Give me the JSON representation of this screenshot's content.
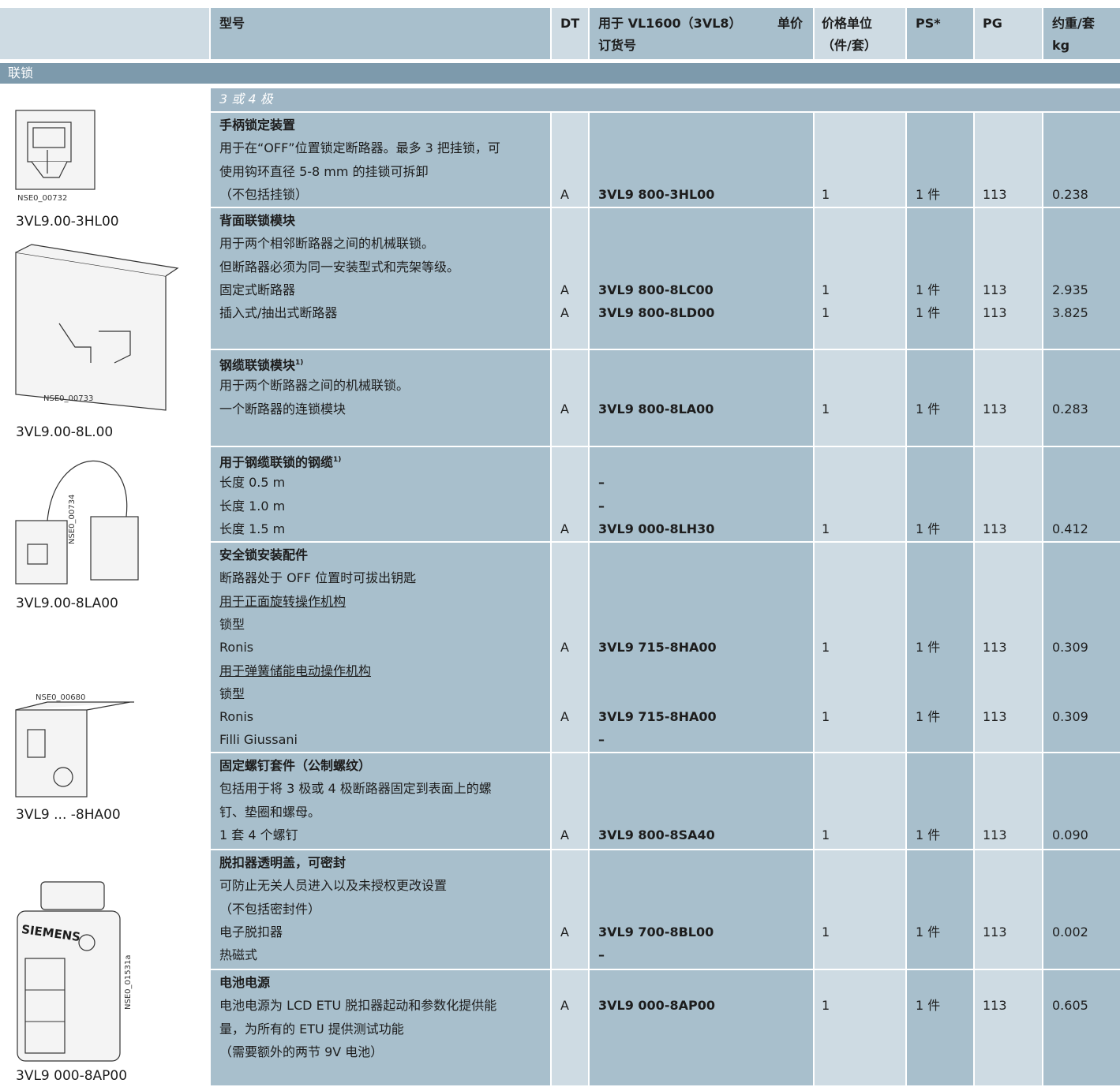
{
  "header": {
    "model": "型号",
    "dt": "DT",
    "order_line1": "用于 VL1600（3VL8）",
    "order_line2": "订货号",
    "price": "单价",
    "unit_line1": "价格单位",
    "unit_line2": "（件/套）",
    "ps": "PS*",
    "pg": "PG",
    "weight_line1": "约重/套",
    "weight_line2": "kg"
  },
  "section": "联锁",
  "subsection": "3 或 4 极",
  "images": [
    {
      "code": "NSE0_00732",
      "caption": "3VL9.00-3HL00"
    },
    {
      "code": "NSE0_00733",
      "caption": "3VL9.00-8L.00"
    },
    {
      "code": "NSE0_00734",
      "caption": "3VL9.00-8LA00"
    },
    {
      "code": "NSE0_00680",
      "caption": "3VL9 ... -8HA00"
    },
    {
      "code": "NSE0_01531a",
      "caption": "3VL9 000-8AP00",
      "brand": "SIEMENS"
    }
  ],
  "groups": [
    {
      "title": "手柄锁定装置",
      "lines": [
        {
          "text": "用于在“OFF”位置锁定断路器。最多 3 把挂锁，可"
        },
        {
          "text": "使用钩环直径 5-8 mm 的挂锁可拆卸"
        },
        {
          "text": "（不包括挂锁）",
          "dt": "A",
          "order": "3VL9 800-3HL00",
          "unit": "1",
          "ps": "1 件",
          "pg": "113",
          "weight": "0.238"
        }
      ]
    },
    {
      "title": "背面联锁模块",
      "lines": [
        {
          "text": "用于两个相邻断路器之间的机械联锁。"
        },
        {
          "text": "但断路器必须为同一安装型式和壳架等级。"
        },
        {
          "text": "固定式断路器",
          "dt": "A",
          "order": "3VL9 800-8LC00",
          "unit": "1",
          "ps": "1 件",
          "pg": "113",
          "weight": "2.935"
        },
        {
          "text": "插入式/抽出式断路器",
          "dt": "A",
          "order": "3VL9 800-8LD00",
          "unit": "1",
          "ps": "1 件",
          "pg": "113",
          "weight": "3.825"
        }
      ]
    },
    {
      "title": "钢缆联锁模块",
      "footnote": "1)",
      "lines": [
        {
          "text": "用于两个断路器之间的机械联锁。"
        },
        {
          "text": "一个断路器的连锁模块",
          "dt": "A",
          "order": "3VL9 800-8LA00",
          "unit": "1",
          "ps": "1 件",
          "pg": "113",
          "weight": "0.283"
        }
      ]
    },
    {
      "title": "用于钢缆联锁的钢缆",
      "footnote": "1)",
      "lines": [
        {
          "text": "长度 0.5 m",
          "order": "–"
        },
        {
          "text": "长度 1.0 m",
          "order": "–"
        },
        {
          "text": "长度 1.5 m",
          "dt": "A",
          "order": "3VL9 000-8LH30",
          "unit": "1",
          "ps": "1 件",
          "pg": "113",
          "weight": "0.412"
        }
      ]
    },
    {
      "title": "安全锁安装配件",
      "lines": [
        {
          "text": "断路器处于 OFF 位置时可拔出钥匙"
        },
        {
          "text": "用于正面旋转操作机构",
          "underline": true
        },
        {
          "text": "锁型"
        },
        {
          "text": "Ronis",
          "dt": "A",
          "order": "3VL9 715-8HA00",
          "unit": "1",
          "ps": "1 件",
          "pg": "113",
          "weight": "0.309"
        },
        {
          "text": "用于弹簧储能电动操作机构",
          "underline": true
        },
        {
          "text": "锁型"
        },
        {
          "text": "Ronis",
          "dt": "A",
          "order": "3VL9 715-8HA00",
          "unit": "1",
          "ps": "1 件",
          "pg": "113",
          "weight": "0.309"
        },
        {
          "text": "Filli Giussani",
          "order": "–"
        }
      ]
    },
    {
      "title": "固定螺钉套件（公制螺纹）",
      "lines": [
        {
          "text": "包括用于将 3 极或 4 极断路器固定到表面上的螺"
        },
        {
          "text": "钉、垫圈和螺母。"
        },
        {
          "text": "1 套 4 个螺钉",
          "dt": "A",
          "order": "3VL9 800-8SA40",
          "unit": "1",
          "ps": "1 件",
          "pg": "113",
          "weight": "0.090"
        }
      ]
    },
    {
      "title": "脱扣器透明盖，可密封",
      "lines": [
        {
          "text": "可防止无关人员进入以及未授权更改设置"
        },
        {
          "text": "（不包括密封件）"
        },
        {
          "text": "电子脱扣器",
          "dt": "A",
          "order": "3VL9 700-8BL00",
          "unit": "1",
          "ps": "1 件",
          "pg": "113",
          "weight": "0.002"
        },
        {
          "text": "热磁式",
          "order": "–"
        }
      ]
    },
    {
      "title": "电池电源",
      "lines": [
        {
          "text": "电池电源为 LCD ETU 脱扣器起动和参数化提供能",
          "dt": "A",
          "order": "3VL9 000-8AP00",
          "unit": "1",
          "ps": "1 件",
          "pg": "113",
          "weight": "0.605"
        },
        {
          "text": "量，为所有的 ETU 提供测试功能"
        },
        {
          "text": "（需要额外的两节 9V 电池）"
        }
      ]
    }
  ]
}
